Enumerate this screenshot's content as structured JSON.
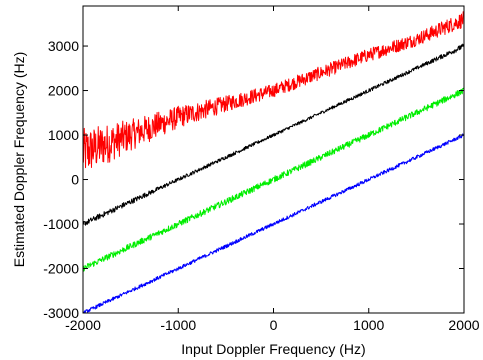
{
  "chart_data": {
    "type": "line",
    "title": "",
    "xlabel": "Input Doppler Frequency (Hz)",
    "ylabel": "Estimated Doppler Frequency (Hz)",
    "xlim": [
      -2000,
      2000
    ],
    "ylim": [
      -3000,
      3900
    ],
    "xticks": [
      -2000,
      -1000,
      0,
      1000,
      2000
    ],
    "yticks": [
      -3000,
      -2000,
      -1000,
      0,
      1000,
      2000,
      3000
    ],
    "grid": false,
    "legend": "none",
    "series": [
      {
        "color": "#ff0000",
        "x": [
          -2000,
          -1500,
          -1000,
          -500,
          0,
          500,
          1000,
          1500,
          2000
        ],
        "y": [
          600,
          1000,
          1400,
          1700,
          2000,
          2400,
          2800,
          3150,
          3600
        ],
        "spread": [
          550,
          350,
          250,
          180,
          150,
          150,
          150,
          150,
          180
        ]
      },
      {
        "color": "#000000",
        "x": [
          -2000,
          -1500,
          -1000,
          -500,
          0,
          500,
          1000,
          1500,
          2000
        ],
        "y": [
          -1000,
          -500,
          0,
          500,
          1000,
          1500,
          2000,
          2500,
          3000
        ],
        "spread": [
          60,
          60,
          40,
          40,
          35,
          35,
          40,
          40,
          60
        ]
      },
      {
        "color": "#00ee00",
        "x": [
          -2000,
          2000
        ],
        "y": [
          -2000,
          2000
        ],
        "spread": [
          70,
          70
        ]
      },
      {
        "color": "#0000ff",
        "x": [
          -2000,
          2000
        ],
        "y": [
          -3000,
          1000
        ],
        "spread": [
          40,
          40
        ]
      }
    ]
  }
}
